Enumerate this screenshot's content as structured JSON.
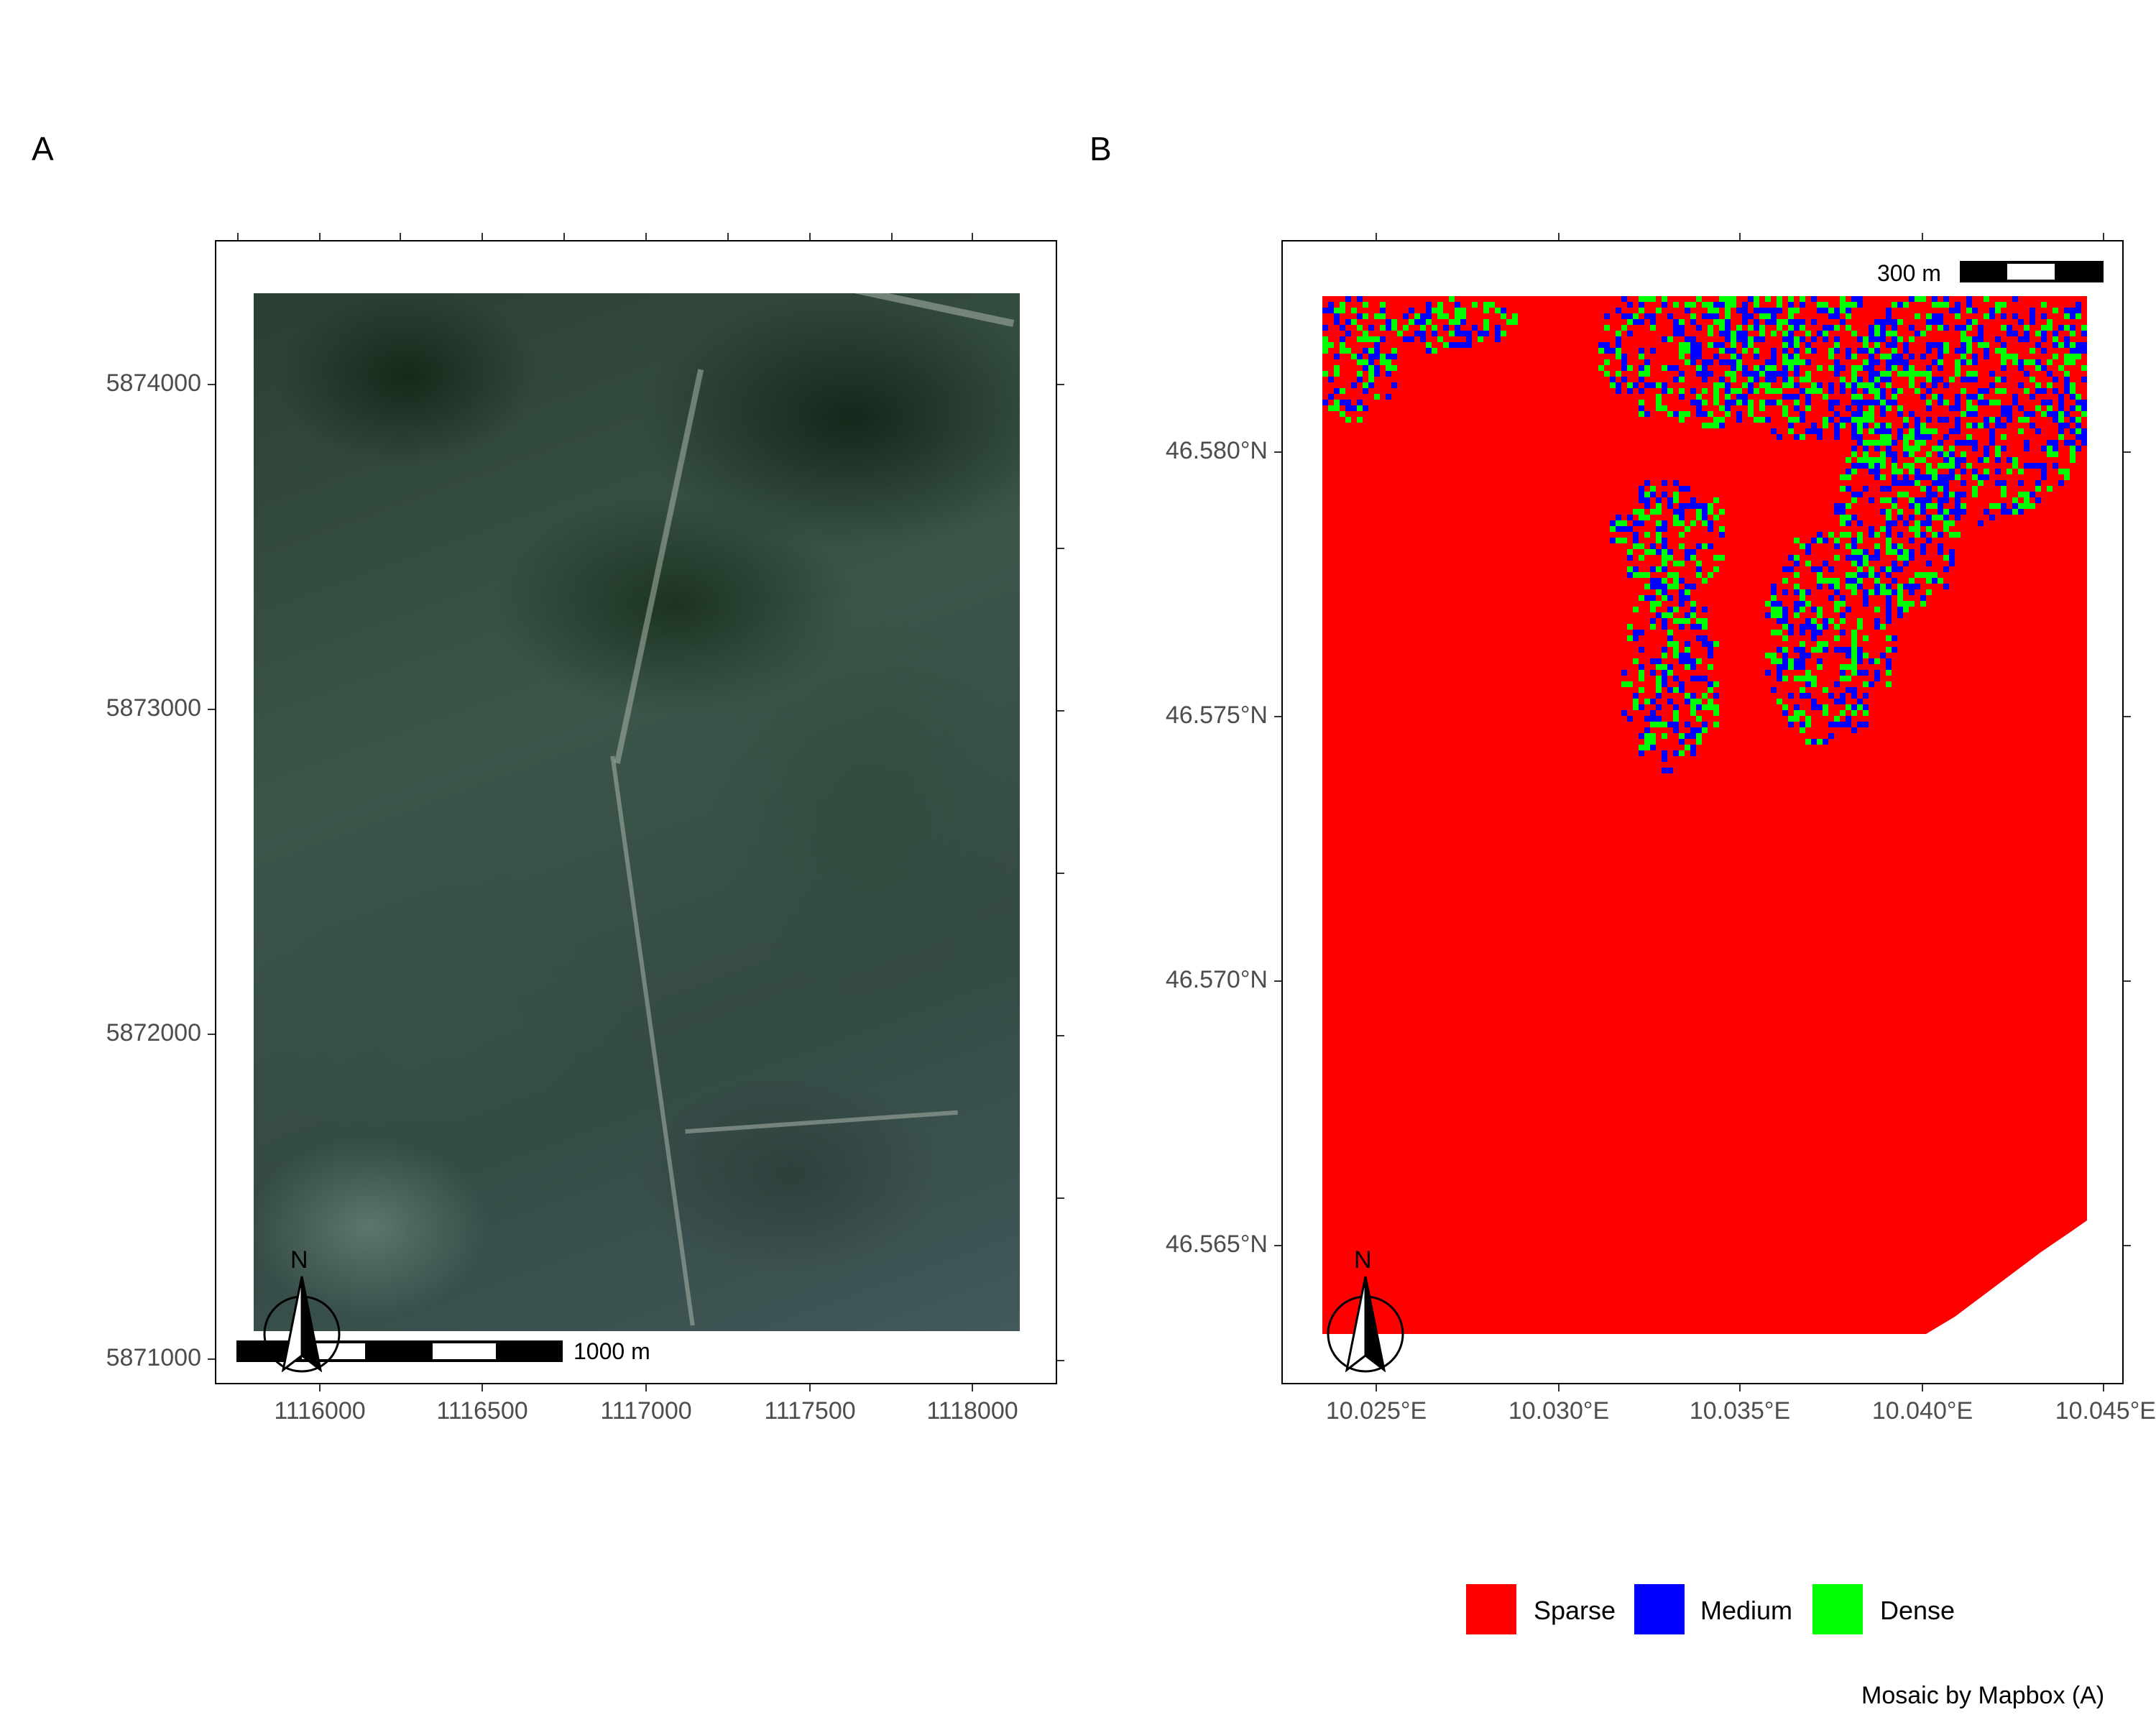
{
  "panels": {
    "a": {
      "letter": "A",
      "y_ticks": [
        "5874000",
        "5873000",
        "5872000",
        "5871000"
      ],
      "x_ticks": [
        "1116000",
        "1116500",
        "1117000",
        "1117500",
        "1118000"
      ],
      "scalebar_label": "1000 m",
      "north_label": "N"
    },
    "b": {
      "letter": "B",
      "y_ticks": [
        "46.580°N",
        "46.575°N",
        "46.570°N",
        "46.565°N"
      ],
      "x_ticks": [
        "10.025°E",
        "10.030°E",
        "10.035°E",
        "10.040°E",
        "10.045°E"
      ],
      "scalebar_label": "300 m",
      "north_label": "N"
    }
  },
  "legend": {
    "items": [
      {
        "label": "Sparse",
        "color": "#FF0000"
      },
      {
        "label": "Medium",
        "color": "#0000FF"
      },
      {
        "label": "Dense",
        "color": "#00FF00"
      }
    ]
  },
  "credit": "Mosaic by Mapbox (A)"
}
